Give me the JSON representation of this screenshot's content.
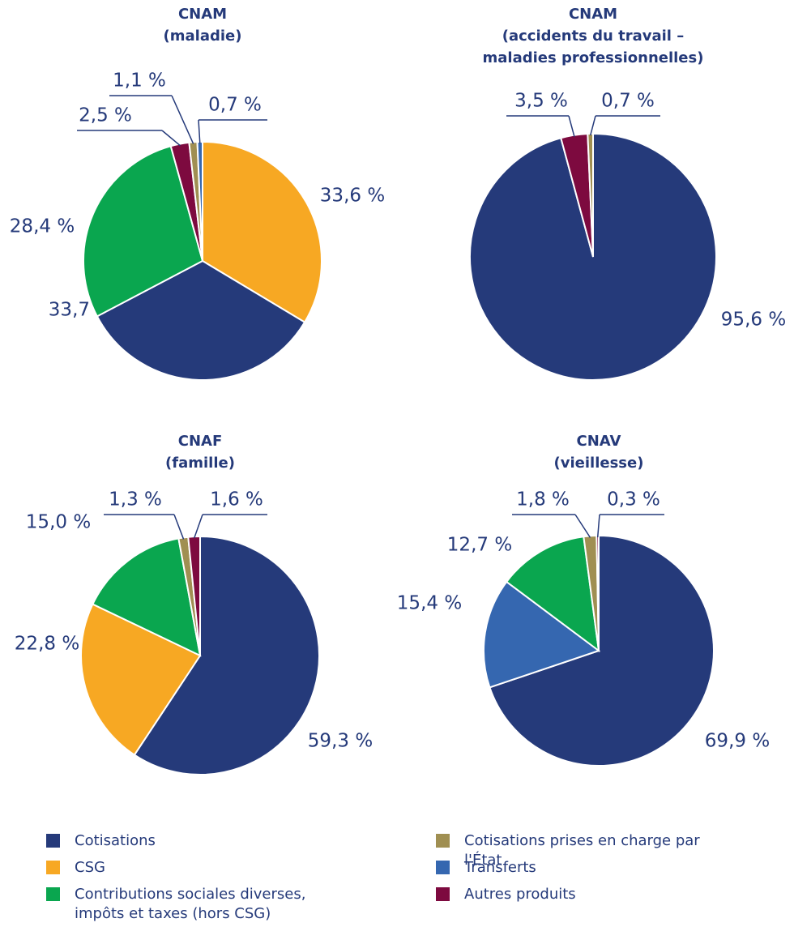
{
  "chart_data": [
    {
      "type": "pie",
      "title": [
        "CNAM",
        "(maladie)"
      ],
      "categories": [
        "CSG",
        "Cotisations",
        "Contributions sociales diverses, impôts et taxes (hors CSG)",
        "Autres produits",
        "Cotisations prises en charge par l'État",
        "Transferts"
      ],
      "values": [
        33.6,
        33.7,
        28.4,
        2.5,
        1.1,
        0.7
      ],
      "value_labels": [
        "33,6 %",
        "33,7 %",
        "28,4 %",
        "2,5 %",
        "1,1 %",
        "0,7 %"
      ],
      "colors": [
        "#f7a823",
        "#253a7a",
        "#0aa64f",
        "#7d0a3f",
        "#a08f52",
        "#3567b0"
      ]
    },
    {
      "type": "pie",
      "title": [
        "CNAM",
        "(accidents du travail –",
        "maladies professionnelles)"
      ],
      "categories": [
        "Cotisations",
        "Autres produits",
        "Cotisations prises en charge par l'État"
      ],
      "values": [
        95.6,
        3.5,
        0.7
      ],
      "value_labels": [
        "95,6 %",
        "3,5 %",
        "0,7 %"
      ],
      "colors": [
        "#253a7a",
        "#7d0a3f",
        "#a08f52"
      ]
    },
    {
      "type": "pie",
      "title": [
        "CNAF",
        "(famille)"
      ],
      "categories": [
        "Cotisations",
        "CSG",
        "Contributions sociales diverses, impôts et taxes (hors CSG)",
        "Cotisations prises en charge par l'État",
        "Autres produits"
      ],
      "values": [
        59.3,
        22.8,
        15.0,
        1.3,
        1.6
      ],
      "value_labels": [
        "59,3 %",
        "22,8 %",
        "15,0 %",
        "1,3 %",
        "1,6 %"
      ],
      "colors": [
        "#253a7a",
        "#f7a823",
        "#0aa64f",
        "#a08f52",
        "#7d0a3f"
      ]
    },
    {
      "type": "pie",
      "title": [
        "CNAV",
        "(vieillesse)"
      ],
      "categories": [
        "Cotisations",
        "Transferts",
        "Contributions sociales diverses, impôts et taxes (hors CSG)",
        "Cotisations prises en charge par l'État",
        "Autres produits"
      ],
      "values": [
        69.9,
        15.4,
        12.7,
        1.8,
        0.3
      ],
      "value_labels": [
        "69,9 %",
        "15,4 %",
        "12,7 %",
        "1,8 %",
        "0,3 %"
      ],
      "colors": [
        "#253a7a",
        "#3567b0",
        "#0aa64f",
        "#a08f52",
        "#7d0a3f"
      ]
    }
  ],
  "legend": {
    "items": [
      {
        "name": "Cotisations",
        "color": "#253a7a"
      },
      {
        "name": "CSG",
        "color": "#f7a823"
      },
      {
        "name": "Contributions sociales diverses, impôts et taxes (hors CSG)",
        "color": "#0aa64f"
      },
      {
        "name": "Cotisations prises en charge par l'État",
        "color": "#a08f52"
      },
      {
        "name": "Transferts",
        "color": "#3567b0"
      },
      {
        "name": "Autres produits",
        "color": "#7d0a3f"
      }
    ]
  }
}
